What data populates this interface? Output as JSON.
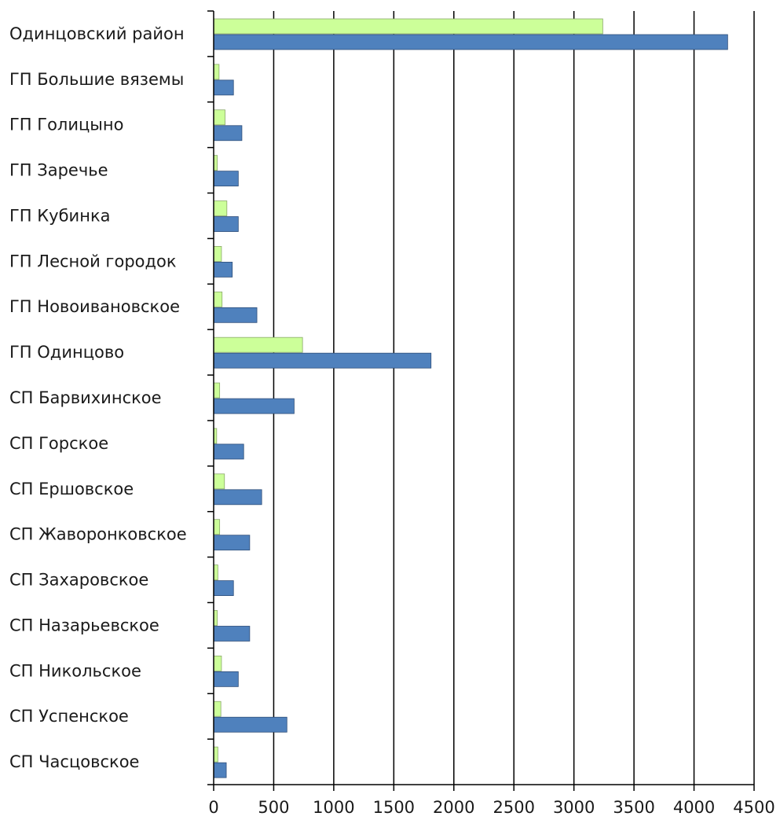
{
  "chart_data": {
    "type": "bar",
    "orientation": "horizontal",
    "title": "",
    "xlabel": "",
    "ylabel": "",
    "xlim": [
      0,
      4500
    ],
    "xticks": [
      0,
      500,
      1000,
      1500,
      2000,
      2500,
      3000,
      3500,
      4000,
      4500
    ],
    "xtick_labels": [
      "0",
      "500",
      "1000",
      "1500",
      "2000",
      "2500",
      "3000",
      "3500",
      "4000",
      "4500"
    ],
    "grid": "vertical",
    "legend": "none",
    "categories": [
      "Одинцовский район",
      "ГП Большие вяземы",
      "ГП Голицыно",
      "ГП Заречье",
      "ГП Кубинка",
      "ГП Лесной городок",
      "ГП Новоивановское",
      "ГП Одинцово",
      "СП Барвихинское",
      "СП Горское",
      "СП Ершовское",
      "СП Жаворонковское",
      "СП Захаровское",
      "СП Назарьевское",
      "СП Никольское",
      "СП Успенское",
      "СП Часцовское"
    ],
    "series": [
      {
        "color": "#ccff99",
        "values": [
          3240,
          45,
          95,
          30,
          110,
          65,
          70,
          740,
          50,
          25,
          90,
          50,
          35,
          30,
          65,
          60,
          35
        ]
      },
      {
        "color": "#4f81bd",
        "values": [
          4280,
          165,
          235,
          205,
          205,
          155,
          360,
          1810,
          670,
          250,
          400,
          300,
          165,
          300,
          205,
          610,
          105
        ]
      }
    ]
  }
}
